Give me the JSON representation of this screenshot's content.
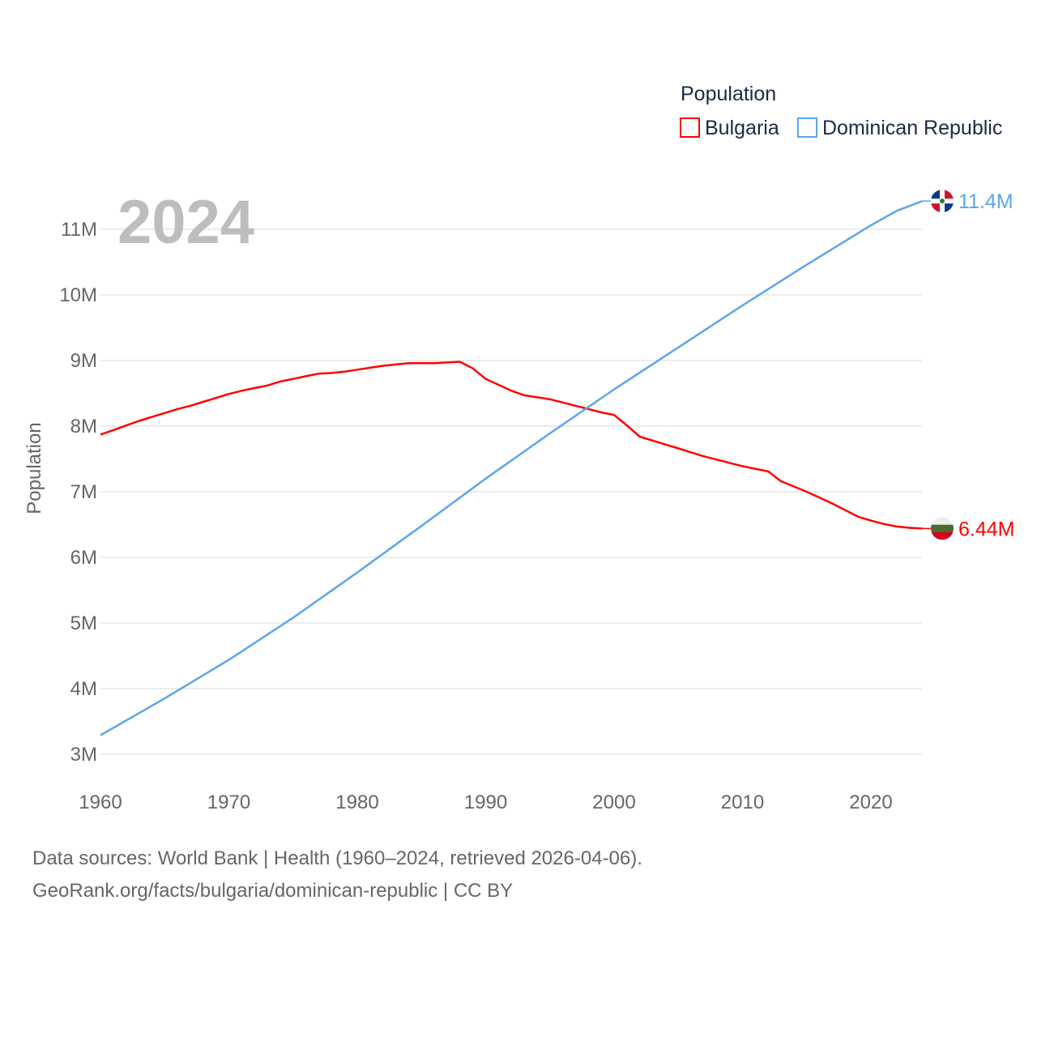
{
  "chart_data": {
    "type": "line",
    "title": "Population",
    "year_watermark": "2024",
    "xlabel": "",
    "ylabel": "Population",
    "xlim": [
      1960,
      2024
    ],
    "ylim": [
      3,
      11.45
    ],
    "y_unit": "millions",
    "grid": true,
    "legend_placement": "top-right",
    "legend_title": "Population",
    "xticks": [
      "1960",
      "1970",
      "1980",
      "1990",
      "2000",
      "2010",
      "2020"
    ],
    "yticks": [
      "3M",
      "4M",
      "5M",
      "6M",
      "7M",
      "8M",
      "9M",
      "10M",
      "11M"
    ],
    "series": [
      {
        "name": "Bulgaria",
        "color": "#ff0000",
        "end_label": "6.44M",
        "x": [
          1960,
          1961,
          1962,
          1963,
          1964,
          1965,
          1966,
          1967,
          1968,
          1969,
          1970,
          1971,
          1972,
          1973,
          1974,
          1975,
          1976,
          1977,
          1978,
          1979,
          1980,
          1981,
          1982,
          1983,
          1984,
          1985,
          1986,
          1987,
          1988,
          1989,
          1990,
          1991,
          1992,
          1993,
          1994,
          1995,
          1996,
          1997,
          1998,
          1999,
          2000,
          2001,
          2002,
          2003,
          2004,
          2005,
          2006,
          2007,
          2008,
          2009,
          2010,
          2011,
          2012,
          2013,
          2014,
          2015,
          2016,
          2017,
          2018,
          2019,
          2020,
          2021,
          2022,
          2023,
          2024
        ],
        "y": [
          7.87,
          7.94,
          8.01,
          8.08,
          8.14,
          8.2,
          8.26,
          8.31,
          8.37,
          8.43,
          8.49,
          8.54,
          8.58,
          8.62,
          8.68,
          8.72,
          8.76,
          8.8,
          8.81,
          8.83,
          8.86,
          8.89,
          8.92,
          8.94,
          8.96,
          8.96,
          8.96,
          8.97,
          8.98,
          8.88,
          8.72,
          8.63,
          8.54,
          8.47,
          8.44,
          8.41,
          8.36,
          8.31,
          8.26,
          8.21,
          8.17,
          8.01,
          7.84,
          7.78,
          7.72,
          7.66,
          7.6,
          7.54,
          7.49,
          7.44,
          7.39,
          7.35,
          7.31,
          7.16,
          7.08,
          7.0,
          6.91,
          6.82,
          6.72,
          6.62,
          6.56,
          6.51,
          6.47,
          6.45,
          6.44
        ]
      },
      {
        "name": "Dominican Republic",
        "color": "#5aa5ee",
        "end_label": "11.4M",
        "x": [
          1960,
          1965,
          1970,
          1975,
          1980,
          1985,
          1990,
          1995,
          2000,
          2005,
          2010,
          2015,
          2020,
          2022,
          2024
        ],
        "y": [
          3.29,
          3.85,
          4.44,
          5.08,
          5.77,
          6.48,
          7.2,
          7.89,
          8.56,
          9.2,
          9.84,
          10.46,
          11.06,
          11.28,
          11.43
        ]
      }
    ]
  },
  "footer": {
    "line1": "Data sources: World Bank | Health (1960–2024, retrieved 2026-04-06).",
    "line2": "GeoRank.org/facts/bulgaria/dominican-republic | CC BY"
  }
}
